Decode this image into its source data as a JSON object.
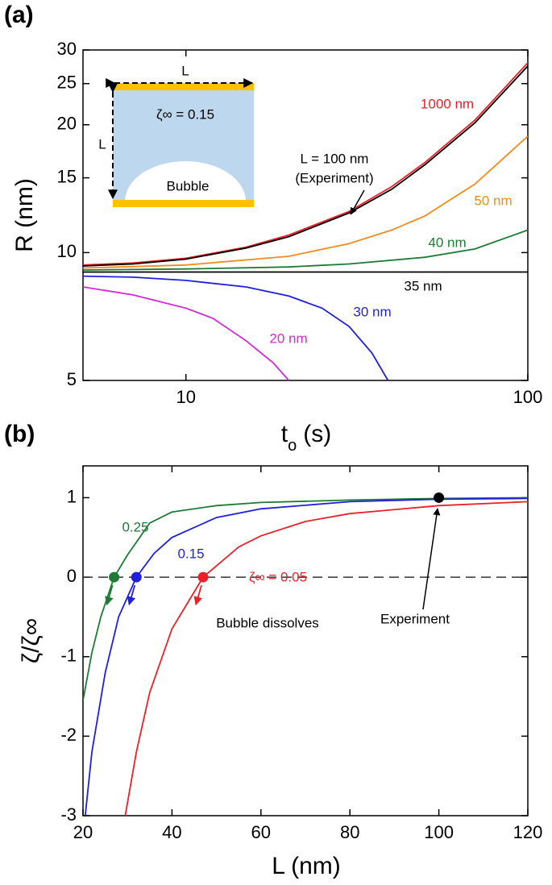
{
  "chart_data": [
    {
      "type": "line",
      "panel_label": "(a)",
      "x_label": "t",
      "x_label_sub": "o",
      "x_label_unit": "(s)",
      "y_label": "R (nm)",
      "xscale": "log",
      "yscale": "log",
      "xlim": [
        5,
        100
      ],
      "ylim": [
        5,
        30
      ],
      "xticks": [
        10,
        100
      ],
      "yticks": [
        5,
        10,
        15,
        20,
        25,
        30
      ],
      "series": [
        {
          "name": "1000 nm",
          "color": "#e8212a",
          "x": [
            5,
            7,
            10,
            15,
            20,
            30,
            40,
            50,
            70,
            100
          ],
          "values": [
            9.35,
            9.45,
            9.7,
            10.3,
            11.0,
            12.5,
            14.3,
            16.3,
            20.5,
            28
          ]
        },
        {
          "name": "L = 100 nm",
          "color": "#000000",
          "x": [
            5,
            7,
            10,
            15,
            20,
            30,
            40,
            50,
            70,
            100
          ],
          "values": [
            9.3,
            9.4,
            9.65,
            10.25,
            10.9,
            12.4,
            14.1,
            16.1,
            20.2,
            27.5
          ]
        },
        {
          "name": "50 nm",
          "color": "#f28c1c",
          "x": [
            5,
            10,
            20,
            30,
            40,
            50,
            70,
            100
          ],
          "values": [
            9.2,
            9.35,
            9.8,
            10.5,
            11.3,
            12.2,
            14.5,
            18.8
          ]
        },
        {
          "name": "40 nm",
          "color": "#1e7b34",
          "x": [
            5,
            10,
            20,
            30,
            50,
            70,
            100
          ],
          "values": [
            9.1,
            9.15,
            9.25,
            9.4,
            9.75,
            10.2,
            11.3
          ]
        },
        {
          "name": "35 nm",
          "color": "#000000",
          "x": [
            5,
            100
          ],
          "values": [
            9.0,
            9.0
          ]
        },
        {
          "name": "30 nm",
          "color": "#1f1fe0",
          "x": [
            5,
            7,
            10,
            15,
            20,
            25,
            30,
            35,
            39
          ],
          "values": [
            8.8,
            8.75,
            8.6,
            8.3,
            7.9,
            7.4,
            6.7,
            5.8,
            5.0
          ]
        },
        {
          "name": "20 nm",
          "color": "#d428d4",
          "x": [
            5,
            7,
            10,
            12,
            15,
            18,
            20
          ],
          "values": [
            8.3,
            7.95,
            7.4,
            7.0,
            6.2,
            5.5,
            5.0
          ]
        }
      ],
      "annotations": [
        "(Experiment)",
        "L",
        "L",
        "ζ∞ = 0.15",
        "Bubble"
      ]
    },
    {
      "type": "line",
      "panel_label": "(b)",
      "x_label": "L (nm)",
      "y_label": "ζ/ζ∞",
      "xlim": [
        20,
        120
      ],
      "ylim": [
        -3,
        1.4
      ],
      "xticks": [
        20,
        40,
        60,
        80,
        100,
        120
      ],
      "yticks": [
        -3,
        -2,
        -1,
        0,
        1
      ],
      "series": [
        {
          "name": "0.25",
          "color": "#1e7b34",
          "x": [
            20,
            22,
            24,
            27,
            30,
            35,
            40,
            50,
            60,
            80,
            100,
            120
          ],
          "values": [
            -1.55,
            -0.95,
            -0.5,
            0,
            0.28,
            0.68,
            0.82,
            0.9,
            0.94,
            0.97,
            0.99,
            1.0
          ]
        },
        {
          "name": "0.15",
          "color": "#1f1fe0",
          "x": [
            20.5,
            22,
            25,
            28,
            32,
            36,
            40,
            50,
            60,
            80,
            100,
            120
          ],
          "values": [
            -3,
            -2.2,
            -1.2,
            -0.5,
            0,
            0.3,
            0.5,
            0.75,
            0.86,
            0.95,
            0.98,
            0.99
          ]
        },
        {
          "name": "ζ∞ = 0.05",
          "color": "#e8212a",
          "x": [
            29.5,
            32,
            35,
            40,
            47,
            55,
            60,
            70,
            80,
            100,
            120
          ],
          "values": [
            -3,
            -2.2,
            -1.45,
            -0.65,
            0,
            0.38,
            0.52,
            0.7,
            0.8,
            0.9,
            0.95
          ]
        }
      ],
      "markers": [
        {
          "x": 27,
          "y": 0,
          "color": "#1e7b34"
        },
        {
          "x": 32,
          "y": 0,
          "color": "#1f1fe0"
        },
        {
          "x": 47,
          "y": 0,
          "color": "#e8212a"
        },
        {
          "x": 100,
          "y": 1,
          "color": "#000000"
        }
      ],
      "annotations": [
        "Experiment",
        "Bubble dissolves"
      ]
    }
  ]
}
